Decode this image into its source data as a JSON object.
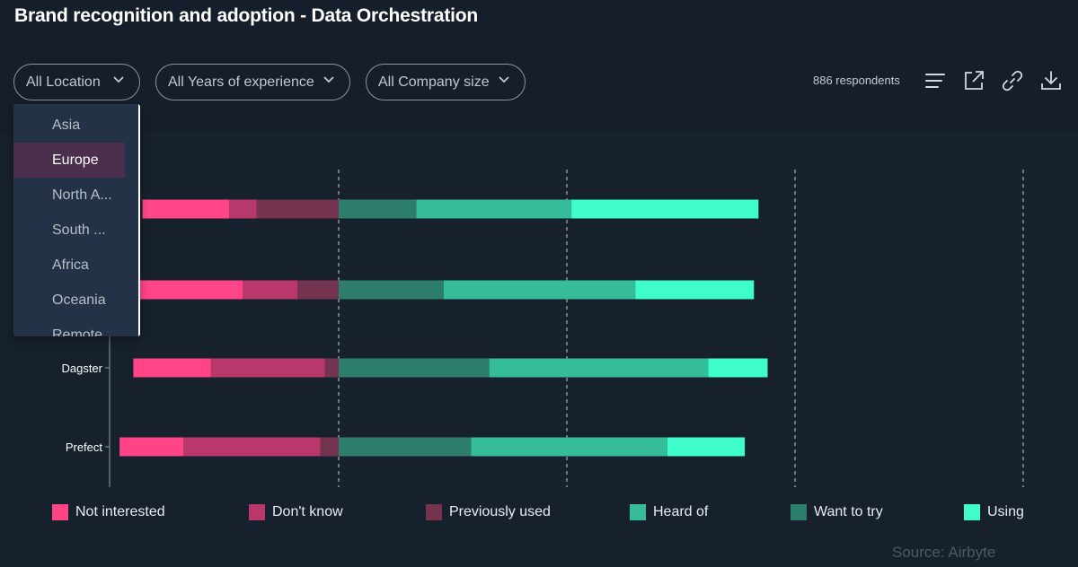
{
  "title": "Brand recognition and adoption - Data Orchestration",
  "filters": [
    {
      "label": "All Location"
    },
    {
      "label": "All Years of experience"
    },
    {
      "label": "All Company size"
    }
  ],
  "respondents": "886 respondents",
  "toolbar": {
    "icons": [
      "menu-icon",
      "external-link-icon",
      "link-icon",
      "download-icon"
    ]
  },
  "location_dropdown": {
    "selected": "Europe",
    "options": [
      "Asia",
      "Europe",
      "North A...",
      "South ...",
      "Africa",
      "Oceania",
      "Remote"
    ]
  },
  "source": "Source: Airbyte",
  "colors": {
    "Not interested": "#ff4588",
    "Don't know": "#b9386b",
    "Previously used": "#74344f",
    "Want to try": "#2c7d6b",
    "Heard of": "#35bd9a",
    "Using": "#3efccb"
  },
  "chart_data": {
    "type": "bar",
    "stacked": "diverging",
    "categories": [
      "",
      "",
      "Dagster",
      "Prefect"
    ],
    "series": [
      {
        "name": "Previously used",
        "side": "negative",
        "values": [
          -18,
          -9,
          -3,
          -4
        ]
      },
      {
        "name": "Don't know",
        "side": "negative",
        "values": [
          -6,
          -12,
          -25,
          -30
        ]
      },
      {
        "name": "Not interested",
        "side": "negative",
        "values": [
          -19,
          -23,
          -17,
          -14
        ]
      },
      {
        "name": "Want to try",
        "side": "positive",
        "values": [
          17,
          23,
          33,
          29
        ]
      },
      {
        "name": "Heard of",
        "side": "positive",
        "values": [
          34,
          42,
          48,
          43
        ]
      },
      {
        "name": "Using",
        "side": "positive",
        "values": [
          41,
          26,
          13,
          17
        ]
      }
    ],
    "legend": [
      "Not interested",
      "Don't know",
      "Previously used",
      "Heard of",
      "Want to try",
      "Using"
    ],
    "legend_position": "bottom",
    "xlim": [
      -48,
      150
    ],
    "gridlines": [
      0,
      50,
      100,
      150
    ],
    "grid": "dashed vertical"
  }
}
